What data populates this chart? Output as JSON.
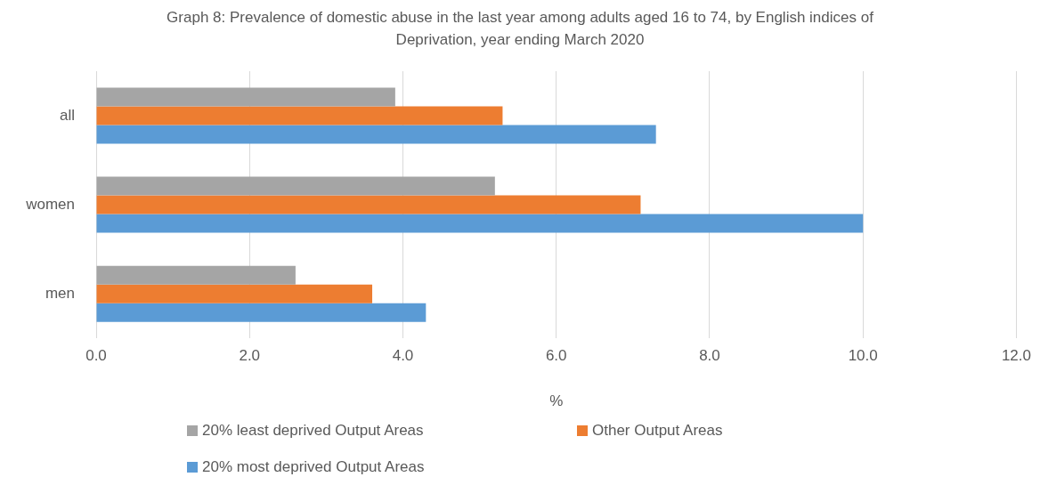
{
  "chart_data": {
    "type": "bar",
    "orientation": "horizontal",
    "title": "Graph 8: Prevalence of domestic abuse in the last year among adults aged 16 to 74, by English indices of Deprivation, year ending March 2020",
    "xlabel": "%",
    "categories": [
      "all",
      "women",
      "men"
    ],
    "series": [
      {
        "name": "20% least deprived Output Areas",
        "color": "#a5a5a5",
        "values": [
          3.9,
          5.2,
          2.6
        ]
      },
      {
        "name": "Other Output Areas",
        "color": "#ed7d31",
        "values": [
          5.3,
          7.1,
          3.6
        ]
      },
      {
        "name": "20% most deprived Output Areas",
        "color": "#5b9bd5",
        "values": [
          7.3,
          10.0,
          4.3
        ]
      }
    ],
    "xlim": [
      0,
      12
    ],
    "xticks": [
      {
        "value": 0,
        "label": "0.0"
      },
      {
        "value": 2,
        "label": "2.0"
      },
      {
        "value": 4,
        "label": "4.0"
      },
      {
        "value": 6,
        "label": "6.0"
      },
      {
        "value": 8,
        "label": "8.0"
      },
      {
        "value": 10,
        "label": "10.0"
      },
      {
        "value": 12,
        "label": "12.0"
      }
    ],
    "grid": "x",
    "legend": "bottom"
  }
}
